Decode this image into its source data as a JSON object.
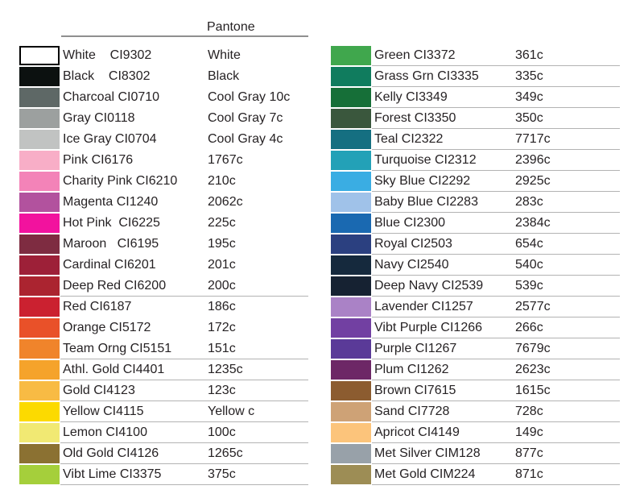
{
  "title": {
    "pantone_header": "Pantone"
  },
  "left_column": {
    "rows": [
      {
        "label": "White    CI9302",
        "pantone": "White",
        "hex": "#ffffff",
        "bordered": true,
        "underline": false
      },
      {
        "label": "Black    CI8302",
        "pantone": "Black",
        "hex": "#0c1110",
        "bordered": false,
        "underline": false
      },
      {
        "label": "Charcoal CI0710",
        "pantone": "Cool Gray 10c",
        "hex": "#5e6866",
        "bordered": false,
        "underline": false
      },
      {
        "label": "Gray CI0118",
        "pantone": "Cool Gray 7c",
        "hex": "#9ca09f",
        "bordered": false,
        "underline": false
      },
      {
        "label": "Ice Gray CI0704",
        "pantone": "Cool Gray 4c",
        "hex": "#c1c3c2",
        "bordered": false,
        "underline": false
      },
      {
        "label": "Pink CI6176",
        "pantone": "1767c",
        "hex": "#f8aec7",
        "bordered": false,
        "underline": false
      },
      {
        "label": "Charity Pink CI6210",
        "pantone": "210c",
        "hex": "#f383b8",
        "bordered": false,
        "underline": false
      },
      {
        "label": "Magenta CI1240",
        "pantone": "2062c",
        "hex": "#b2529e",
        "bordered": false,
        "underline": false
      },
      {
        "label": "Hot Pink  CI6225",
        "pantone": "225c",
        "hex": "#f2129e",
        "bordered": false,
        "underline": false
      },
      {
        "label": "Maroon   CI6195",
        "pantone": "195c",
        "hex": "#7e2c41",
        "bordered": false,
        "underline": false
      },
      {
        "label": "Cardinal CI6201",
        "pantone": "201c",
        "hex": "#9d2038",
        "bordered": false,
        "underline": false
      },
      {
        "label": "Deep Red CI6200",
        "pantone": "200c",
        "hex": "#ab2430",
        "bordered": false,
        "underline": true
      },
      {
        "label": "Red CI6187",
        "pantone": "186c",
        "hex": "#cb2130",
        "bordered": false,
        "underline": false
      },
      {
        "label": "Orange CI5172",
        "pantone": "172c",
        "hex": "#e95129",
        "bordered": false,
        "underline": false
      },
      {
        "label": "Team Orng CI5151",
        "pantone": "151c",
        "hex": "#f0842b",
        "bordered": false,
        "underline": true
      },
      {
        "label": "Athl. Gold CI4401",
        "pantone": "1235c",
        "hex": "#f5a32b",
        "bordered": false,
        "underline": true
      },
      {
        "label": "Gold CI4123",
        "pantone": "123c",
        "hex": "#f8bb44",
        "bordered": false,
        "underline": true
      },
      {
        "label": "Yellow CI4115",
        "pantone": "Yellow c",
        "hex": "#fcda00",
        "bordered": false,
        "underline": true
      },
      {
        "label": "Lemon CI4100",
        "pantone": "100c",
        "hex": "#f1e973",
        "bordered": false,
        "underline": true
      },
      {
        "label": "Old Gold CI4126",
        "pantone": "1265c",
        "hex": "#8b7132",
        "bordered": false,
        "underline": true
      },
      {
        "label": "Vibt Lime CI3375",
        "pantone": "375c",
        "hex": "#a5cf3b",
        "bordered": false,
        "underline": true
      }
    ]
  },
  "right_column": {
    "rows": [
      {
        "label": "Green CI3372",
        "pantone": "361c",
        "hex": "#40a74d",
        "bordered": false,
        "underline": true
      },
      {
        "label": "Grass Grn CI3335",
        "pantone": "335c",
        "hex": "#107c5e",
        "bordered": false,
        "underline": true
      },
      {
        "label": "Kelly CI3349",
        "pantone": "349c",
        "hex": "#166f38",
        "bordered": false,
        "underline": true
      },
      {
        "label": "Forest CI3350",
        "pantone": "350c",
        "hex": "#3a573d",
        "bordered": false,
        "underline": true
      },
      {
        "label": "Teal CI2322",
        "pantone": "7717c",
        "hex": "#156f81",
        "bordered": false,
        "underline": true
      },
      {
        "label": "Turquoise CI2312",
        "pantone": "2396c",
        "hex": "#23a1b7",
        "bordered": false,
        "underline": true
      },
      {
        "label": "Sky Blue CI2292",
        "pantone": "2925c",
        "hex": "#3aade3",
        "bordered": false,
        "underline": true
      },
      {
        "label": "Baby Blue CI2283",
        "pantone": "283c",
        "hex": "#a0c2e9",
        "bordered": false,
        "underline": true
      },
      {
        "label": "Blue CI2300",
        "pantone": "2384c",
        "hex": "#1a69b1",
        "bordered": false,
        "underline": true
      },
      {
        "label": "Royal CI2503",
        "pantone": "654c",
        "hex": "#2b4080",
        "bordered": false,
        "underline": true
      },
      {
        "label": "Navy CI2540",
        "pantone": "540c",
        "hex": "#15293d",
        "bordered": false,
        "underline": true
      },
      {
        "label": "Deep Navy CI2539",
        "pantone": "539c",
        "hex": "#162232",
        "bordered": false,
        "underline": true
      },
      {
        "label": "Lavender CI1257",
        "pantone": "2577c",
        "hex": "#aa82c6",
        "bordered": false,
        "underline": true
      },
      {
        "label": "Vibt Purple CI1266",
        "pantone": "266c",
        "hex": "#7240a2",
        "bordered": false,
        "underline": true
      },
      {
        "label": "Purple CI1267",
        "pantone": "7679c",
        "hex": "#5a3a98",
        "bordered": false,
        "underline": true
      },
      {
        "label": "Plum CI1262",
        "pantone": "2623c",
        "hex": "#6d2766",
        "bordered": false,
        "underline": true
      },
      {
        "label": "Brown CI7615",
        "pantone": "1615c",
        "hex": "#8c5c30",
        "bordered": false,
        "underline": true
      },
      {
        "label": "Sand CI7728",
        "pantone": "728c",
        "hex": "#cea276",
        "bordered": false,
        "underline": true
      },
      {
        "label": "Apricot CI4149",
        "pantone": "149c",
        "hex": "#fcc47b",
        "bordered": false,
        "underline": true
      },
      {
        "label": "Met Silver CIM128",
        "pantone": "877c",
        "hex": "#98a1a9",
        "bordered": false,
        "underline": true
      },
      {
        "label": "Met Gold CIM224",
        "pantone": "871c",
        "hex": "#9d8d55",
        "bordered": false,
        "underline": true
      }
    ]
  }
}
